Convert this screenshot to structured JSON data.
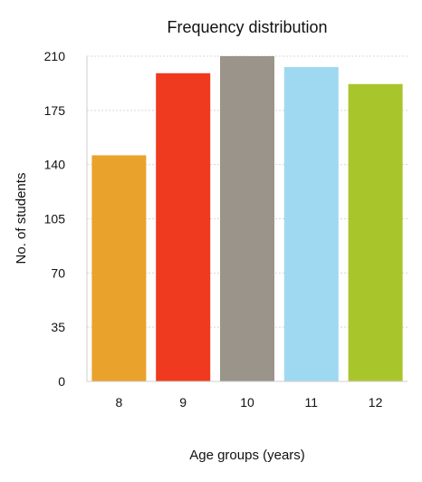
{
  "chart_data": {
    "type": "bar",
    "title": "Frequency distribution",
    "xlabel": "Age groups (years)",
    "ylabel": "No. of students",
    "categories": [
      "8",
      "9",
      "10",
      "11",
      "12"
    ],
    "values": [
      146,
      199,
      210,
      203,
      192
    ],
    "ylim": [
      0,
      210
    ],
    "yticks": [
      0,
      35,
      70,
      105,
      140,
      175,
      210
    ],
    "grid": true,
    "colors": [
      "#e9a22b",
      "#f03a1f",
      "#9b948a",
      "#9fd9f1",
      "#a8c62c"
    ]
  }
}
